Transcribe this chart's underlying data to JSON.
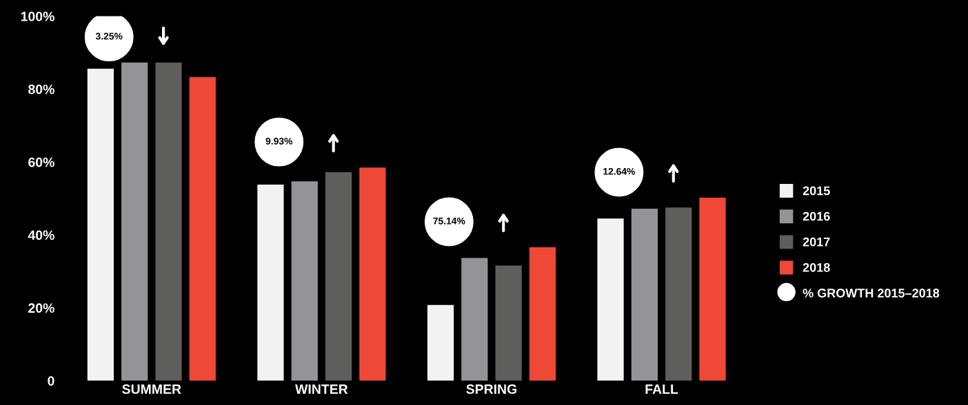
{
  "chart_data": {
    "type": "bar",
    "categories": [
      "SUMMER",
      "WINTER",
      "SPRING",
      "FALL"
    ],
    "series": [
      {
        "name": "2015",
        "color": "#f2f2f3",
        "values": [
          85.6,
          53.8,
          20.8,
          44.5
        ]
      },
      {
        "name": "2016",
        "color": "#949497",
        "values": [
          87.3,
          54.7,
          33.7,
          47.2
        ]
      },
      {
        "name": "2017",
        "color": "#5e5f5d",
        "values": [
          87.3,
          57.2,
          31.6,
          47.5
        ]
      },
      {
        "name": "2018",
        "color": "#ef4836",
        "values": [
          83.3,
          58.5,
          36.6,
          50.2
        ]
      }
    ],
    "ylim": [
      0,
      100
    ],
    "yticks": [
      0,
      {
        "value": 20,
        "label": "20%"
      },
      {
        "value": 40,
        "label": "40%"
      },
      {
        "value": 60,
        "label": "60%"
      },
      {
        "value": 80,
        "label": "80%"
      },
      {
        "value": 100,
        "label": "100%"
      }
    ],
    "annotations": [
      "3.25%",
      "9.93%",
      "75.14%",
      "12.64%",
      "% GROWTH 2015–2018"
    ],
    "grid": false,
    "legend": "right"
  }
}
